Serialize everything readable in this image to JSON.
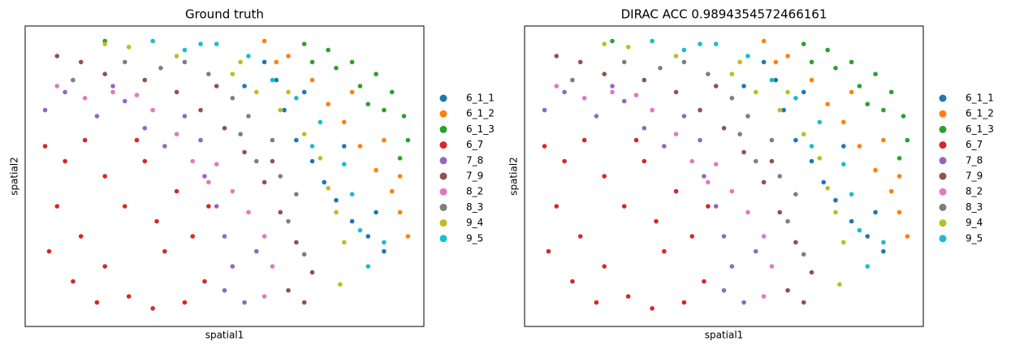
{
  "chart_data": [
    {
      "type": "scatter",
      "title": "Ground truth",
      "xlabel": "spatial1",
      "ylabel": "spatial2",
      "xlim": [
        0,
        100
      ],
      "ylim": [
        0,
        100
      ],
      "legend": "right",
      "series": [
        {
          "name": "6_1_1",
          "color": "#1f77b4",
          "x": [
            60,
            55,
            65,
            68,
            72,
            75,
            78,
            82,
            86,
            90,
            88,
            80,
            63,
            70
          ],
          "y": [
            88,
            80,
            72,
            62,
            55,
            48,
            42,
            35,
            30,
            25,
            38,
            60,
            82,
            78
          ]
        },
        {
          "name": "6_1_2",
          "color": "#ff7f0e",
          "x": [
            60,
            63,
            72,
            76,
            80,
            84,
            88,
            92,
            94,
            96,
            90,
            82,
            66,
            94
          ],
          "y": [
            95,
            88,
            82,
            74,
            68,
            60,
            52,
            45,
            38,
            30,
            62,
            78,
            90,
            50
          ]
        },
        {
          "name": "6_1_3",
          "color": "#2ca02c",
          "x": [
            70,
            76,
            82,
            88,
            92,
            95,
            96,
            90,
            84,
            78,
            94,
            72,
            86,
            20
          ],
          "y": [
            94,
            92,
            88,
            84,
            78,
            70,
            62,
            72,
            80,
            86,
            56,
            88,
            74,
            95
          ]
        },
        {
          "name": "6_7",
          "color": "#d62728",
          "x": [
            5,
            10,
            15,
            20,
            8,
            14,
            20,
            26,
            32,
            40,
            45,
            42,
            38,
            30,
            25,
            12,
            35,
            28,
            46,
            6,
            18,
            33
          ],
          "y": [
            60,
            55,
            62,
            50,
            40,
            30,
            20,
            10,
            6,
            8,
            15,
            30,
            45,
            55,
            40,
            15,
            25,
            62,
            40,
            25,
            8,
            35
          ]
        },
        {
          "name": "7_8",
          "color": "#9467bd",
          "x": [
            5,
            10,
            18,
            25,
            30,
            35,
            40,
            45,
            48,
            50,
            52,
            55,
            50,
            58,
            22,
            44
          ],
          "y": [
            72,
            78,
            70,
            75,
            66,
            60,
            70,
            50,
            40,
            30,
            20,
            8,
            12,
            25,
            80,
            62
          ]
        },
        {
          "name": "7_9",
          "color": "#8c564b",
          "x": [
            14,
            20,
            30,
            38,
            44,
            50,
            55,
            60,
            64,
            68,
            72,
            70,
            66,
            8,
            62,
            48
          ],
          "y": [
            88,
            84,
            82,
            78,
            72,
            66,
            58,
            48,
            38,
            28,
            18,
            8,
            12,
            90,
            55,
            80
          ]
        },
        {
          "name": "8_2",
          "color": "#e377c2",
          "x": [
            8,
            15,
            22,
            32,
            38,
            42,
            46,
            52,
            56,
            60,
            62,
            60,
            48,
            28
          ],
          "y": [
            80,
            76,
            78,
            72,
            64,
            55,
            48,
            45,
            38,
            30,
            20,
            10,
            54,
            77
          ]
        },
        {
          "name": "8_3",
          "color": "#7f7f7f",
          "x": [
            12,
            25,
            34,
            46,
            52,
            56,
            62,
            58,
            64,
            68,
            66,
            70,
            54,
            40
          ],
          "y": [
            82,
            88,
            86,
            84,
            76,
            70,
            62,
            55,
            50,
            44,
            35,
            24,
            64,
            88
          ]
        },
        {
          "name": "9_4",
          "color": "#bcbd22",
          "x": [
            20,
            26,
            38,
            52,
            58,
            64,
            70,
            74,
            76,
            78,
            80,
            79,
            66,
            54
          ],
          "y": [
            94,
            93,
            90,
            84,
            78,
            72,
            64,
            56,
            46,
            38,
            28,
            14,
            78,
            88
          ]
        },
        {
          "name": "9_5",
          "color": "#17becf",
          "x": [
            32,
            40,
            48,
            56,
            62,
            68,
            74,
            80,
            82,
            84,
            86,
            90,
            72,
            44
          ],
          "y": [
            95,
            92,
            94,
            90,
            82,
            76,
            68,
            54,
            44,
            32,
            20,
            28,
            60,
            94
          ]
        }
      ]
    },
    {
      "type": "scatter",
      "title": "DIRAC ACC 0.9894354572466161",
      "xlabel": "spatial1",
      "ylabel": "spatial2",
      "xlim": [
        0,
        100
      ],
      "ylim": [
        0,
        100
      ],
      "legend": "right",
      "series": [
        {
          "name": "6_1_1",
          "color": "#1f77b4",
          "x": [
            60,
            55,
            65,
            68,
            72,
            75,
            78,
            82,
            86,
            90,
            88,
            80,
            63,
            70
          ],
          "y": [
            88,
            80,
            72,
            62,
            55,
            48,
            42,
            35,
            30,
            25,
            38,
            60,
            82,
            78
          ]
        },
        {
          "name": "6_1_2",
          "color": "#ff7f0e",
          "x": [
            60,
            63,
            72,
            76,
            80,
            84,
            88,
            92,
            94,
            96,
            90,
            82,
            66,
            94
          ],
          "y": [
            95,
            88,
            82,
            74,
            68,
            60,
            52,
            45,
            38,
            30,
            62,
            78,
            90,
            50
          ]
        },
        {
          "name": "6_1_3",
          "color": "#2ca02c",
          "x": [
            70,
            76,
            82,
            88,
            92,
            95,
            96,
            90,
            84,
            78,
            94,
            72,
            86,
            22
          ],
          "y": [
            94,
            92,
            88,
            84,
            78,
            70,
            62,
            72,
            80,
            86,
            56,
            88,
            74,
            95
          ]
        },
        {
          "name": "6_7",
          "color": "#d62728",
          "x": [
            5,
            10,
            15,
            20,
            8,
            14,
            20,
            26,
            32,
            40,
            45,
            42,
            38,
            30,
            25,
            12,
            35,
            28,
            46,
            6,
            18,
            33
          ],
          "y": [
            60,
            55,
            62,
            50,
            40,
            30,
            20,
            10,
            6,
            8,
            15,
            30,
            45,
            55,
            40,
            15,
            25,
            62,
            40,
            25,
            8,
            35
          ]
        },
        {
          "name": "7_8",
          "color": "#9467bd",
          "x": [
            5,
            10,
            18,
            25,
            30,
            35,
            40,
            45,
            48,
            50,
            52,
            55,
            50,
            58,
            22,
            44
          ],
          "y": [
            72,
            78,
            70,
            75,
            66,
            60,
            70,
            50,
            40,
            30,
            20,
            8,
            12,
            25,
            80,
            62
          ]
        },
        {
          "name": "7_9",
          "color": "#8c564b",
          "x": [
            14,
            20,
            30,
            38,
            44,
            50,
            55,
            60,
            64,
            68,
            72,
            70,
            66,
            8,
            62,
            48
          ],
          "y": [
            88,
            84,
            82,
            78,
            72,
            66,
            58,
            48,
            38,
            28,
            18,
            8,
            12,
            90,
            55,
            80
          ]
        },
        {
          "name": "8_2",
          "color": "#e377c2",
          "x": [
            8,
            15,
            22,
            32,
            38,
            42,
            46,
            52,
            56,
            60,
            62,
            60,
            48,
            28
          ],
          "y": [
            80,
            76,
            78,
            72,
            64,
            55,
            48,
            45,
            38,
            30,
            20,
            10,
            54,
            77
          ]
        },
        {
          "name": "8_3",
          "color": "#7f7f7f",
          "x": [
            12,
            25,
            34,
            46,
            52,
            56,
            62,
            58,
            64,
            68,
            66,
            70,
            54,
            40
          ],
          "y": [
            82,
            88,
            86,
            84,
            76,
            70,
            62,
            55,
            50,
            44,
            35,
            24,
            64,
            88
          ]
        },
        {
          "name": "9_4",
          "color": "#bcbd22",
          "x": [
            20,
            26,
            38,
            52,
            58,
            64,
            70,
            74,
            76,
            78,
            80,
            79,
            66,
            54
          ],
          "y": [
            94,
            93,
            90,
            84,
            78,
            72,
            64,
            56,
            46,
            38,
            28,
            14,
            78,
            88
          ]
        },
        {
          "name": "9_5",
          "color": "#17becf",
          "x": [
            32,
            40,
            48,
            56,
            62,
            68,
            74,
            80,
            82,
            84,
            86,
            90,
            72,
            44
          ],
          "y": [
            95,
            92,
            94,
            90,
            82,
            76,
            68,
            54,
            44,
            32,
            20,
            28,
            60,
            94
          ]
        }
      ]
    }
  ]
}
